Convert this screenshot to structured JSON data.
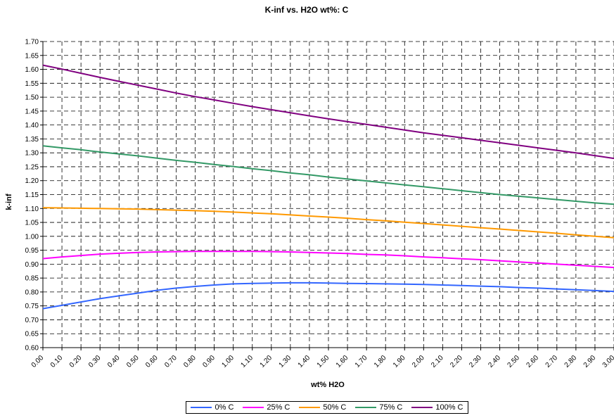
{
  "chart_data": {
    "type": "line",
    "title": "K-inf vs. H2O wt%:  C",
    "xlabel": "wt% H2O",
    "ylabel": "k-inf",
    "xlim": [
      0.0,
      3.0
    ],
    "ylim": [
      0.6,
      1.7
    ],
    "x_ticks": [
      "0.00",
      "0.10",
      "0.20",
      "0.30",
      "0.40",
      "0.50",
      "0.60",
      "0.70",
      "0.80",
      "0.90",
      "1.00",
      "1.10",
      "1.20",
      "1.30",
      "1.40",
      "1.50",
      "1.60",
      "1.70",
      "1.80",
      "1.90",
      "2.00",
      "2.10",
      "2.20",
      "2.30",
      "2.40",
      "2.50",
      "2.60",
      "2.70",
      "2.80",
      "2.90",
      "3.00"
    ],
    "y_ticks": [
      "0.60",
      "0.65",
      "0.70",
      "0.75",
      "0.80",
      "0.85",
      "0.90",
      "0.95",
      "1.00",
      "1.05",
      "1.10",
      "1.15",
      "1.20",
      "1.25",
      "1.30",
      "1.35",
      "1.40",
      "1.45",
      "1.50",
      "1.55",
      "1.60",
      "1.65",
      "1.70"
    ],
    "grid": true,
    "legend_position": "bottom",
    "x": [
      0.0,
      0.1,
      0.2,
      0.3,
      0.4,
      0.5,
      0.6,
      0.7,
      0.8,
      0.9,
      1.0,
      1.1,
      1.2,
      1.3,
      1.4,
      1.5,
      1.6,
      1.7,
      1.8,
      1.9,
      2.0,
      2.1,
      2.2,
      2.3,
      2.4,
      2.5,
      2.6,
      2.7,
      2.8,
      2.9,
      3.0
    ],
    "series": [
      {
        "name": "0% C",
        "color": "#3366ff",
        "values": [
          0.74,
          0.752,
          0.764,
          0.776,
          0.786,
          0.796,
          0.806,
          0.814,
          0.82,
          0.825,
          0.829,
          0.831,
          0.832,
          0.833,
          0.833,
          0.832,
          0.831,
          0.83,
          0.829,
          0.828,
          0.827,
          0.825,
          0.823,
          0.821,
          0.819,
          0.816,
          0.814,
          0.811,
          0.808,
          0.805,
          0.802
        ]
      },
      {
        "name": "25% C",
        "color": "#ff00ff",
        "values": [
          0.92,
          0.926,
          0.931,
          0.936,
          0.939,
          0.942,
          0.944,
          0.945,
          0.946,
          0.946,
          0.946,
          0.946,
          0.945,
          0.944,
          0.942,
          0.94,
          0.938,
          0.935,
          0.933,
          0.93,
          0.926,
          0.923,
          0.919,
          0.916,
          0.912,
          0.908,
          0.904,
          0.9,
          0.896,
          0.892,
          0.888
        ]
      },
      {
        "name": "50% C",
        "color": "#ff9900",
        "values": [
          1.103,
          1.102,
          1.101,
          1.1,
          1.099,
          1.098,
          1.096,
          1.094,
          1.092,
          1.09,
          1.087,
          1.084,
          1.081,
          1.077,
          1.073,
          1.069,
          1.065,
          1.06,
          1.056,
          1.051,
          1.046,
          1.041,
          1.036,
          1.031,
          1.026,
          1.021,
          1.016,
          1.011,
          1.005,
          1.0,
          0.995
        ]
      },
      {
        "name": "75% C",
        "color": "#339966",
        "values": [
          1.325,
          1.318,
          1.311,
          1.303,
          1.296,
          1.289,
          1.281,
          1.273,
          1.266,
          1.258,
          1.251,
          1.243,
          1.236,
          1.228,
          1.221,
          1.213,
          1.206,
          1.199,
          1.192,
          1.185,
          1.178,
          1.171,
          1.164,
          1.157,
          1.15,
          1.144,
          1.138,
          1.132,
          1.126,
          1.12,
          1.115
        ]
      },
      {
        "name": "100% C",
        "color": "#800080",
        "values": [
          1.615,
          1.601,
          1.586,
          1.571,
          1.557,
          1.543,
          1.529,
          1.515,
          1.502,
          1.49,
          1.478,
          1.466,
          1.455,
          1.444,
          1.433,
          1.422,
          1.412,
          1.402,
          1.392,
          1.382,
          1.372,
          1.363,
          1.354,
          1.345,
          1.336,
          1.327,
          1.318,
          1.309,
          1.3,
          1.29,
          1.28
        ]
      }
    ]
  }
}
